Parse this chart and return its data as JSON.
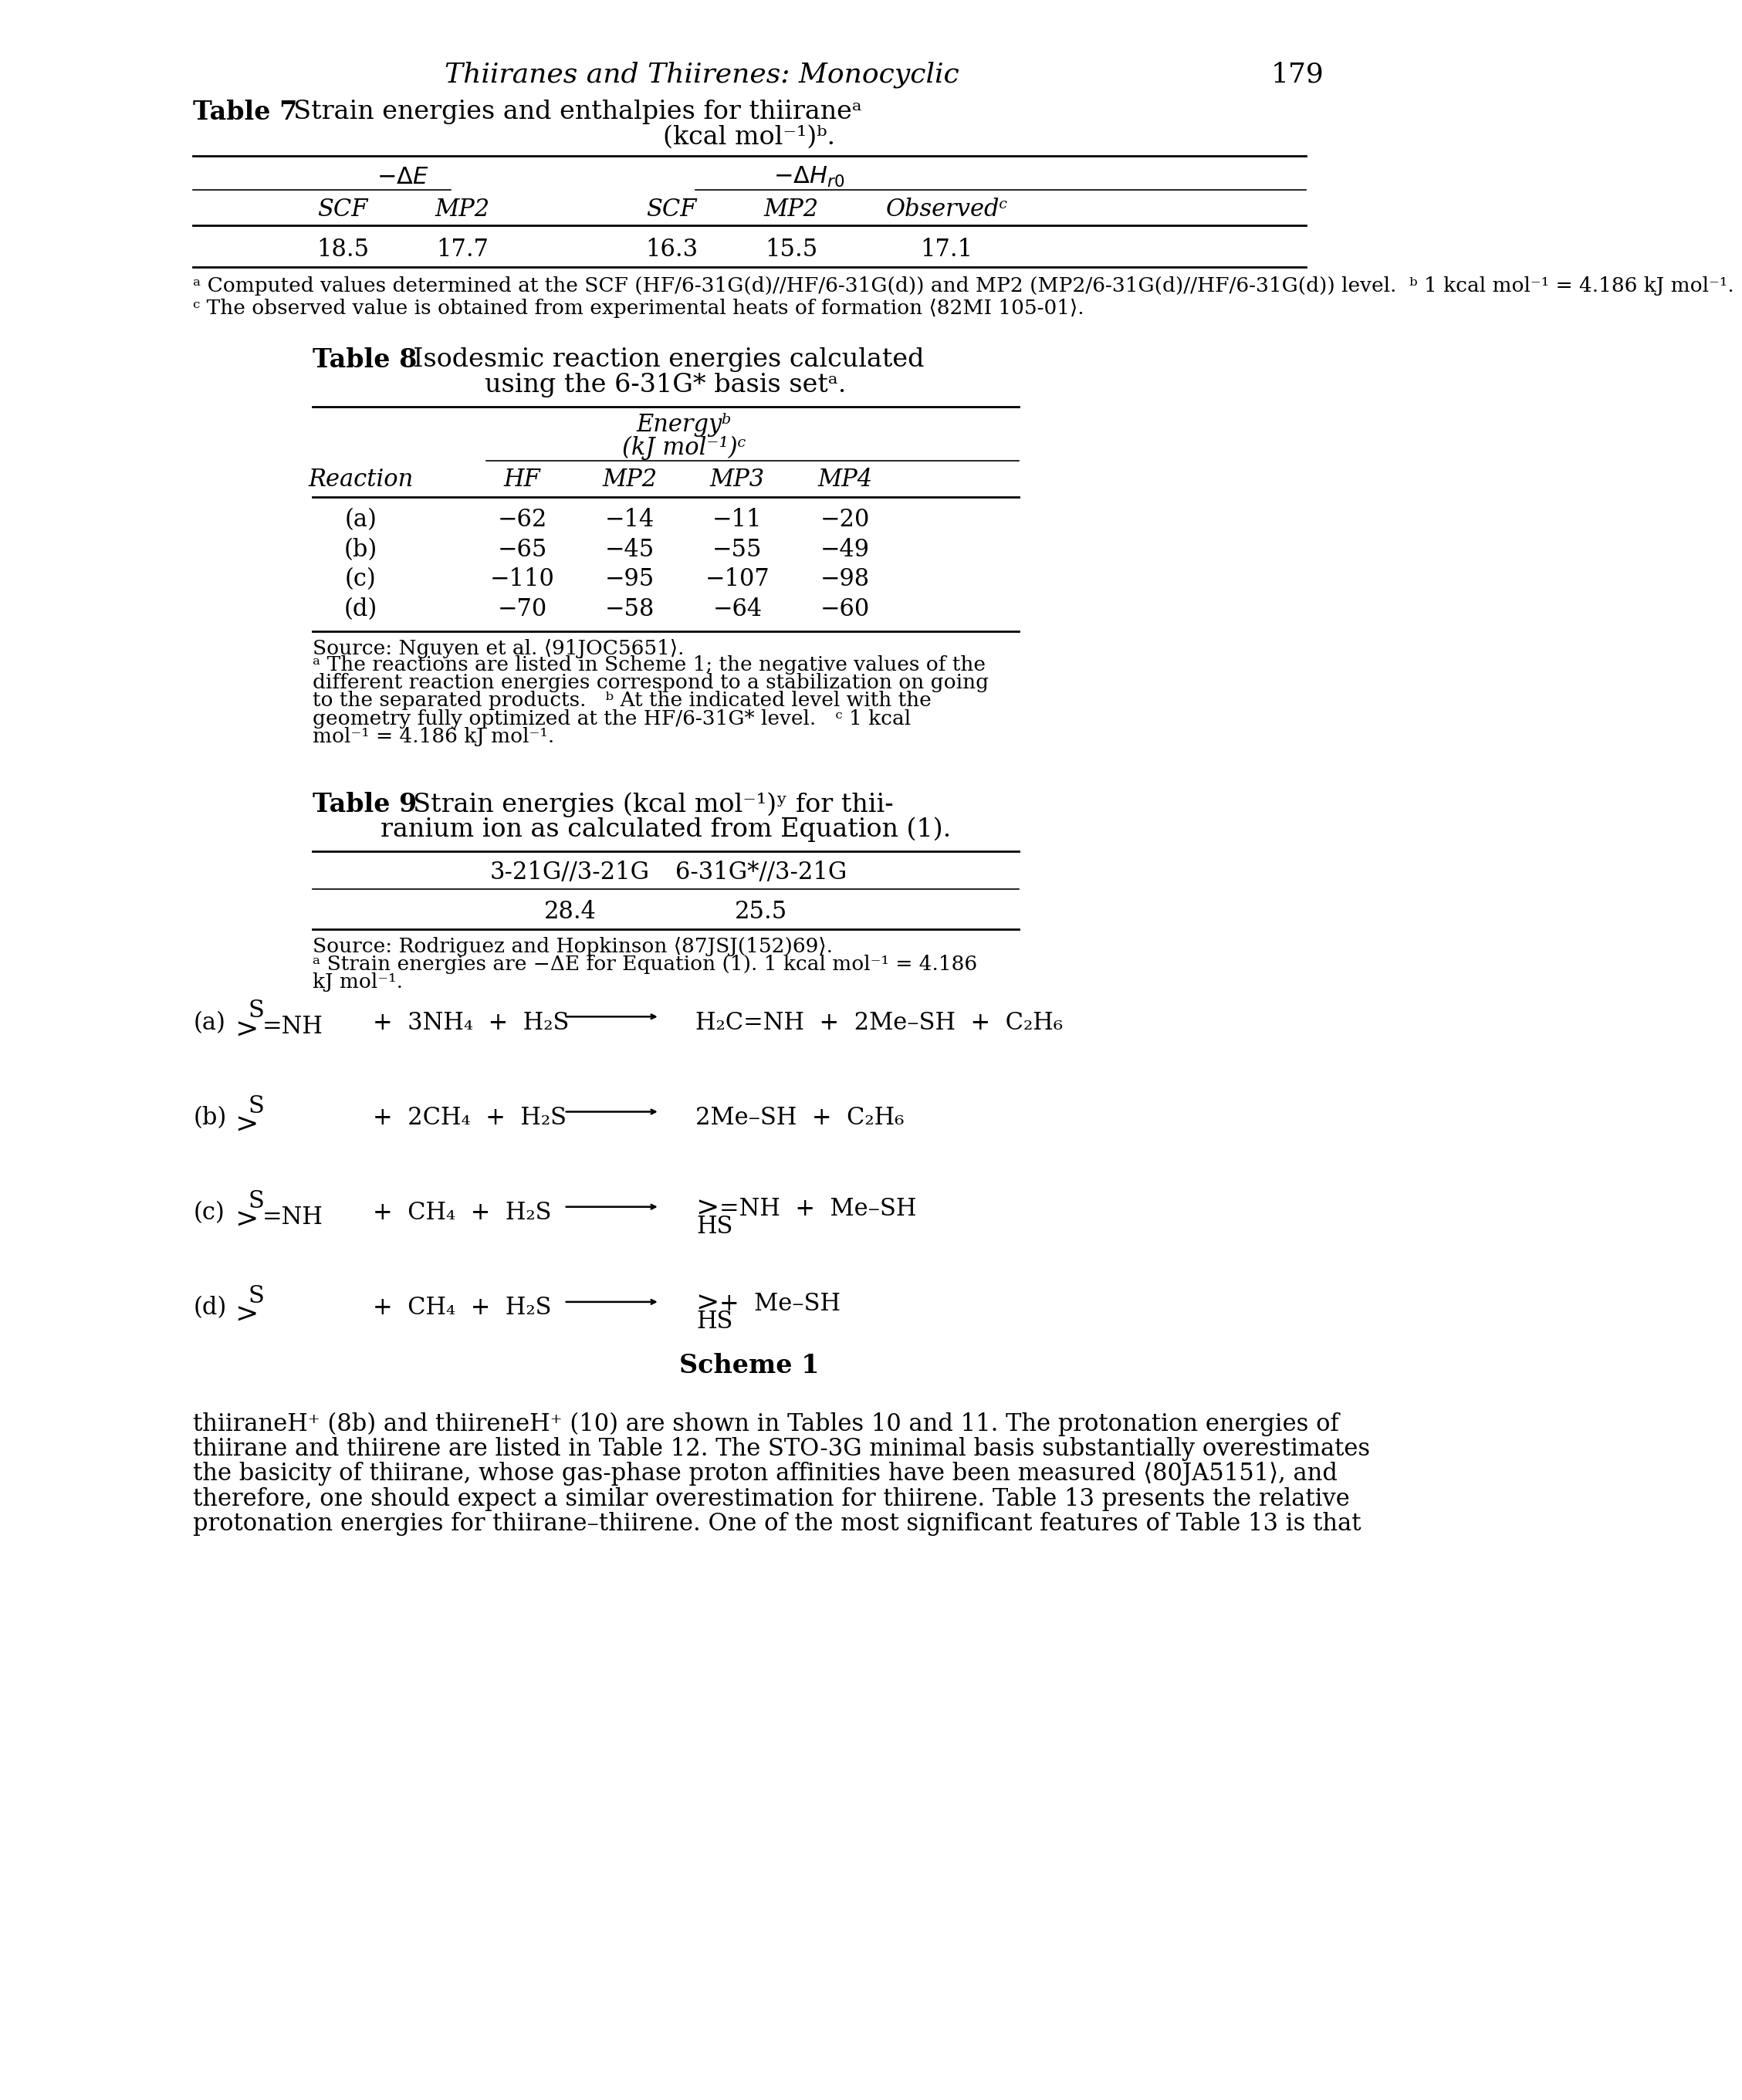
{
  "page_title": "Thiiranes and Thiirenes: Monocyclic",
  "page_number": "179",
  "background_color": "#ffffff",
  "table7": {
    "title_bold": "Table 7",
    "title_rest": "  Strain energies and enthalpies for thiiraneᵃ",
    "subtitle": "(kcal mol⁻¹)ᵇ.",
    "group1_label": "−ΔE",
    "group2_label": "−ΔHₑ₀",
    "col_labels": [
      "SCF",
      "MP2",
      "SCF",
      "MP2",
      "Observedᶜ"
    ],
    "data_row": [
      "18.5",
      "17.7",
      "16.3",
      "15.5",
      "17.1"
    ],
    "fn1": "ᵃ Computed values determined at the SCF (HF/6-31G(d)//HF/6-31G(d)) and MP2 (MP2/6-31G(d)//HF/6-31G(d)) level.",
    "fn1b": "  ᵇ 1 kcal mol⁻¹ = 4.186 kJ mol⁻¹.",
    "fn2": "ᶜ The observed value is obtained from experimental heats of formation ⟨82MI 105-01⟩."
  },
  "table8": {
    "title_bold": "Table 8",
    "title_rest": "  Isodesmic reaction energies calculated",
    "subtitle": "using the 6-31G* basis setᵃ.",
    "energy_header": "Energyᵇ",
    "energy_unit": "(kJ mol⁻¹)ᶜ",
    "col_labels": [
      "Reaction",
      "HF",
      "MP2",
      "MP3",
      "MP4"
    ],
    "data": [
      [
        "(a)",
        "−62",
        "−14",
        "−11",
        "−20"
      ],
      [
        "(b)",
        "−65",
        "−45",
        "−55",
        "−49"
      ],
      [
        "(c)",
        "−110",
        "−95",
        "−107",
        "−98"
      ],
      [
        "(d)",
        "−70",
        "−58",
        "−64",
        "−60"
      ]
    ],
    "source": "Source: Nguyen et al. ⟨91JOC5651⟩.",
    "fn_a": "ᵃ The reactions are listed in Scheme 1; the negative values of the",
    "fn_a2": "different reaction energies correspond to a stabilization on going",
    "fn_a3": "to the separated products.   ᵇ At the indicated level with the",
    "fn_a4": "geometry fully optimized at the HF/6-31G* level.   ᶜ 1 kcal",
    "fn_a5": "mol⁻¹ = 4.186 kJ mol⁻¹."
  },
  "table9": {
    "title_bold": "Table 9",
    "title_rest": "  Strain energies (kcal mol⁻¹)ʸ for thii-",
    "subtitle": "ranium ion as calculated from Equation (1).",
    "col_labels": [
      "3-21G//3-21G",
      "6-31G*//3-21G"
    ],
    "data_row": [
      "28.4",
      "25.5"
    ],
    "source": "Source: Rodriguez and Hopkinson ⟨87JSJ(152)69⟩.",
    "fn_a": "ᵃ Strain energies are −ΔE for Equation (1). 1 kcal mol⁻¹ = 4.186",
    "fn_a2": "kJ mol⁻¹."
  },
  "body_text_lines": [
    "thiiraneH⁺ (8b) and thiireneH⁺ (10) are shown in Tables 10 and 11. The protonation energies of",
    "thiirane and thiirene are listed in Table 12. The STO-3G minimal basis substantially overestimates",
    "the basicity of thiirane, whose gas-phase proton affinities have been measured ⟨80JA5151⟩, and",
    "therefore, one should expect a similar overestimation for thiirene. Table 13 presents the relative",
    "protonation energies for thiirane–thiirene. One of the most significant features of Table 13 is that"
  ]
}
